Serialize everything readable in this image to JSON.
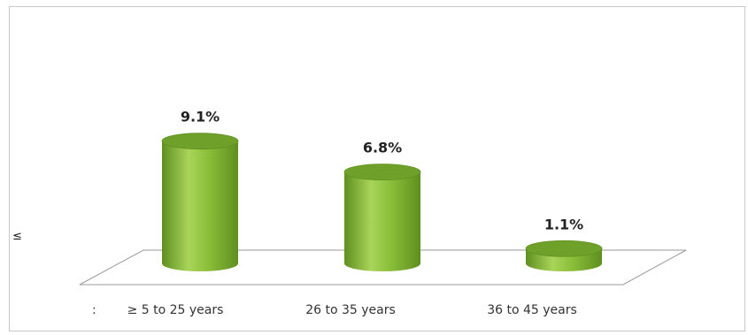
{
  "chart_data": {
    "type": "bar",
    "style": "3d-cylinder",
    "categories": [
      "≥ 5 to 25 years",
      "26 to 35 years",
      "36  to 45 years"
    ],
    "category_prefix": ":",
    "values": [
      9.1,
      6.8,
      1.1
    ],
    "value_labels": [
      "9.1%",
      "6.8%",
      "1.1%"
    ],
    "ylim": [
      0,
      10
    ],
    "grid": false,
    "legend": "none",
    "colors": {
      "bar": "#8bbf3a",
      "bar_dark": "#5f8f1f",
      "bar_top": "#6fa12a",
      "floor_line": "#9a9a9a"
    }
  },
  "margin_symbol": "≤"
}
